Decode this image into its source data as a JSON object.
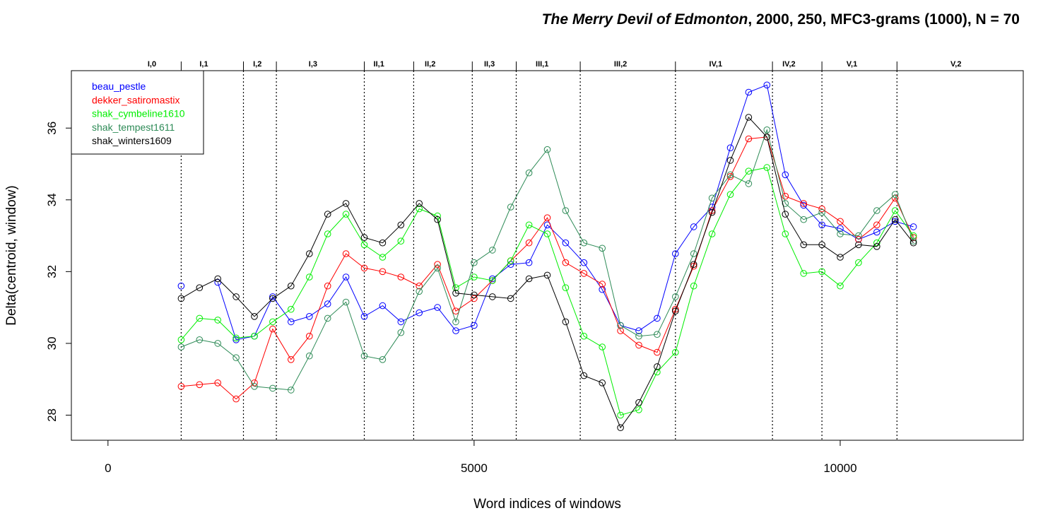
{
  "chart_data": {
    "type": "line",
    "title_italic": "The Merry Devil of Edmonton",
    "title_rest": ", 2000, 250, MFC3-grams (1000), N = 70",
    "xlabel": "Word indices of windows",
    "ylabel": "Delta(centroid, window)",
    "xlim": [
      -500,
      12500
    ],
    "ylim": [
      27.3,
      37.6
    ],
    "xticks": [
      0,
      5000,
      10000
    ],
    "yticks": [
      28,
      30,
      32,
      34,
      36
    ],
    "grid": false,
    "legend_position": "top-left",
    "x": [
      1000,
      1250,
      1500,
      1750,
      2000,
      2250,
      2500,
      2750,
      3000,
      3250,
      3500,
      3750,
      4000,
      4250,
      4500,
      4750,
      5000,
      5250,
      5500,
      5750,
      6000,
      6250,
      6500,
      6750,
      7000,
      7250,
      7500,
      7750,
      8000,
      8250,
      8500,
      8750,
      9000,
      9250,
      9500,
      9750,
      10000,
      10250,
      10500,
      10750,
      11000
    ],
    "series": [
      {
        "name": "beau_pestle",
        "color": "#0000ff",
        "values": [
          31.6,
          null,
          31.7,
          30.1,
          30.2,
          31.3,
          30.6,
          30.75,
          31.1,
          31.85,
          30.75,
          31.05,
          30.6,
          30.85,
          31.0,
          30.35,
          30.5,
          31.8,
          32.2,
          32.25,
          33.3,
          32.8,
          32.25,
          31.5,
          30.5,
          30.35,
          30.7,
          32.5,
          33.25,
          33.8,
          35.45,
          37.0,
          37.2,
          34.7,
          33.85,
          33.3,
          33.2,
          32.9,
          33.1,
          33.4,
          33.25
        ]
      },
      {
        "name": "dekker_satiromastix",
        "color": "#ff0000",
        "values": [
          28.8,
          28.85,
          28.9,
          28.45,
          28.9,
          30.4,
          29.55,
          30.2,
          31.6,
          32.5,
          32.1,
          32.0,
          31.85,
          31.6,
          32.2,
          30.9,
          31.25,
          31.75,
          32.3,
          32.8,
          33.5,
          32.25,
          31.95,
          31.65,
          30.35,
          29.95,
          29.75,
          30.95,
          32.15,
          33.7,
          34.65,
          35.7,
          35.75,
          34.1,
          33.9,
          33.75,
          33.4,
          32.9,
          33.3,
          34.05,
          32.95
        ]
      },
      {
        "name": "shak_cymbeline1610",
        "color": "#00ee00",
        "values": [
          30.1,
          30.7,
          30.65,
          30.15,
          30.2,
          30.6,
          30.95,
          31.85,
          33.05,
          33.6,
          32.75,
          32.4,
          32.85,
          33.75,
          33.55,
          31.55,
          31.85,
          31.75,
          32.3,
          33.3,
          33.05,
          31.55,
          30.2,
          29.9,
          28.0,
          28.15,
          29.2,
          29.75,
          31.6,
          33.05,
          34.15,
          34.8,
          34.9,
          33.05,
          31.95,
          32.0,
          31.6,
          32.25,
          32.8,
          33.7,
          33.0
        ]
      },
      {
        "name": "shak_tempest1611",
        "color": "#2e8b57",
        "values": [
          29.9,
          30.1,
          30.0,
          29.6,
          28.8,
          28.75,
          28.7,
          29.65,
          30.7,
          31.15,
          29.65,
          29.55,
          30.3,
          31.45,
          32.1,
          30.6,
          32.25,
          32.6,
          33.8,
          34.75,
          35.4,
          33.7,
          32.8,
          32.65,
          30.5,
          30.2,
          30.25,
          31.3,
          32.5,
          34.05,
          34.7,
          34.45,
          35.95,
          33.9,
          33.45,
          33.65,
          33.05,
          33.0,
          33.7,
          34.15,
          32.85
        ]
      },
      {
        "name": "shak_winters1609",
        "color": "#000000",
        "values": [
          31.25,
          31.55,
          31.8,
          31.3,
          30.75,
          31.25,
          31.6,
          32.5,
          33.6,
          33.9,
          32.95,
          32.8,
          33.3,
          33.9,
          33.45,
          31.4,
          31.35,
          31.3,
          31.25,
          31.8,
          31.9,
          30.6,
          29.1,
          28.9,
          27.65,
          28.35,
          29.35,
          30.9,
          32.2,
          33.65,
          35.1,
          36.3,
          35.75,
          33.6,
          32.75,
          32.75,
          32.4,
          32.75,
          32.7,
          33.45,
          32.8
        ]
      }
    ],
    "scene_boundaries": [
      1000,
      1850,
      2300,
      3500,
      4175,
      4975,
      5575,
      6450,
      7750,
      9075,
      9750,
      10775
    ],
    "scenes": [
      {
        "label": "I,0",
        "x": 600
      },
      {
        "label": "I,1",
        "x": 1310
      },
      {
        "label": "I,2",
        "x": 2040
      },
      {
        "label": "I,3",
        "x": 2800
      },
      {
        "label": "II,1",
        "x": 3700
      },
      {
        "label": "II,2",
        "x": 4400
      },
      {
        "label": "II,3",
        "x": 5210
      },
      {
        "label": "III,1",
        "x": 5930
      },
      {
        "label": "III,2",
        "x": 7000
      },
      {
        "label": "IV,1",
        "x": 8300
      },
      {
        "label": "IV,2",
        "x": 9300
      },
      {
        "label": "V,1",
        "x": 10160
      },
      {
        "label": "V,2",
        "x": 11580
      }
    ]
  }
}
